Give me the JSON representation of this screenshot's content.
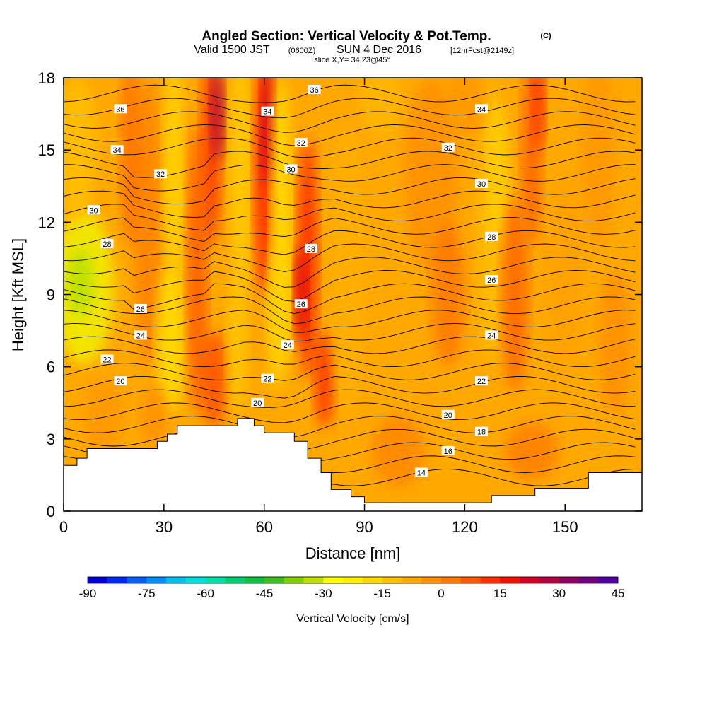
{
  "chart_data": {
    "type": "heatmap",
    "title": "Angled Section: Vertical Velocity & Pot.Temp.",
    "title_suffix": "(C)",
    "subtitle_main": "Valid 1500 JST",
    "subtitle_utc": "(0600Z)",
    "subtitle_date": "SUN 4 Dec 2016",
    "subtitle_fcst": "[12hrFcst@2149z]",
    "subtitle_slice": "slice X,Y= 34,23@45°",
    "xlabel": "Distance [nm]",
    "ylabel": "Height [Kft MSL]",
    "xlim": [
      0,
      173
    ],
    "ylim": [
      0,
      18
    ],
    "x_ticks": [
      "0",
      "30",
      "60",
      "90",
      "120",
      "150"
    ],
    "x_tick_values": [
      0,
      30,
      60,
      90,
      120,
      150
    ],
    "y_ticks": [
      "0",
      "3",
      "6",
      "9",
      "12",
      "15",
      "18"
    ],
    "y_tick_values": [
      0,
      3,
      6,
      9,
      12,
      15,
      18
    ],
    "colorbar": {
      "label": "Vertical Velocity [cm/s]",
      "tick_labels": [
        "-90",
        "-75",
        "-60",
        "-45",
        "-30",
        "-15",
        "0",
        "15",
        "30",
        "45"
      ],
      "min": -90,
      "max": 45,
      "step": 5,
      "colors": [
        "#0000d0",
        "#0028f0",
        "#0060f8",
        "#0090f8",
        "#00c0f0",
        "#00e0e0",
        "#00e0a8",
        "#00d070",
        "#10c040",
        "#40c020",
        "#80d000",
        "#c0e000",
        "#ffff00",
        "#fff000",
        "#ffd800",
        "#ffc000",
        "#ffa800",
        "#ff9000",
        "#ff7800",
        "#ff5800",
        "#ff3000",
        "#f01000",
        "#d00020",
        "#b00040",
        "#900060",
        "#700080",
        "#5000a0"
      ]
    },
    "theta_contour_labels": [
      {
        "text": "36",
        "x": 17,
        "y": 16.7
      },
      {
        "text": "34",
        "x": 16,
        "y": 15.0
      },
      {
        "text": "32",
        "x": 29,
        "y": 14.0
      },
      {
        "text": "30",
        "x": 9,
        "y": 12.5
      },
      {
        "text": "28",
        "x": 13,
        "y": 11.1
      },
      {
        "text": "26",
        "x": 23,
        "y": 8.4
      },
      {
        "text": "24",
        "x": 23,
        "y": 7.3
      },
      {
        "text": "22",
        "x": 13,
        "y": 6.3
      },
      {
        "text": "20",
        "x": 17,
        "y": 5.4
      },
      {
        "text": "36",
        "x": 75,
        "y": 17.5
      },
      {
        "text": "34",
        "x": 61,
        "y": 16.6
      },
      {
        "text": "32",
        "x": 71,
        "y": 15.3
      },
      {
        "text": "30",
        "x": 68,
        "y": 14.2
      },
      {
        "text": "28",
        "x": 74,
        "y": 10.9
      },
      {
        "text": "26",
        "x": 71,
        "y": 8.6
      },
      {
        "text": "24",
        "x": 67,
        "y": 6.9
      },
      {
        "text": "22",
        "x": 61,
        "y": 5.5
      },
      {
        "text": "20",
        "x": 58,
        "y": 4.5
      },
      {
        "text": "34",
        "x": 125,
        "y": 16.7
      },
      {
        "text": "32",
        "x": 115,
        "y": 15.1
      },
      {
        "text": "30",
        "x": 125,
        "y": 13.6
      },
      {
        "text": "28",
        "x": 128,
        "y": 11.4
      },
      {
        "text": "26",
        "x": 128,
        "y": 9.6
      },
      {
        "text": "24",
        "x": 128,
        "y": 7.3
      },
      {
        "text": "22",
        "x": 125,
        "y": 5.4
      },
      {
        "text": "20",
        "x": 115,
        "y": 4.0
      },
      {
        "text": "18",
        "x": 125,
        "y": 3.3
      },
      {
        "text": "16",
        "x": 115,
        "y": 2.5
      },
      {
        "text": "14",
        "x": 107,
        "y": 1.6
      }
    ]
  }
}
